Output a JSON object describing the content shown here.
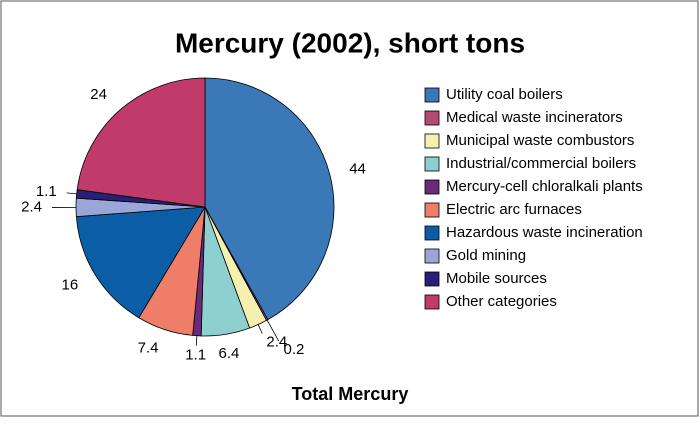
{
  "chart_data": {
    "type": "pie",
    "title": "Mercury (2002), short tons",
    "subtitle": "Total Mercury",
    "categories": [
      "Utility coal boilers",
      "Medical waste incinerators",
      "Municipal waste combustors",
      "Industrial/commercial boilers",
      "Mercury-cell chloralkali plants",
      "Electric arc furnaces",
      "Hazardous waste incineration",
      "Gold mining",
      "Mobile sources",
      "Other categories"
    ],
    "values": [
      44,
      0.2,
      2.4,
      6.4,
      1.1,
      7.4,
      16,
      2.4,
      1.1,
      24
    ],
    "colors": [
      "#3a78b8",
      "#b54a72",
      "#f4f0b0",
      "#8ecfd0",
      "#6b2a78",
      "#ee7e68",
      "#0b5ea6",
      "#9aa6d8",
      "#2a1f78",
      "#c03a6a"
    ],
    "legend": "right"
  }
}
